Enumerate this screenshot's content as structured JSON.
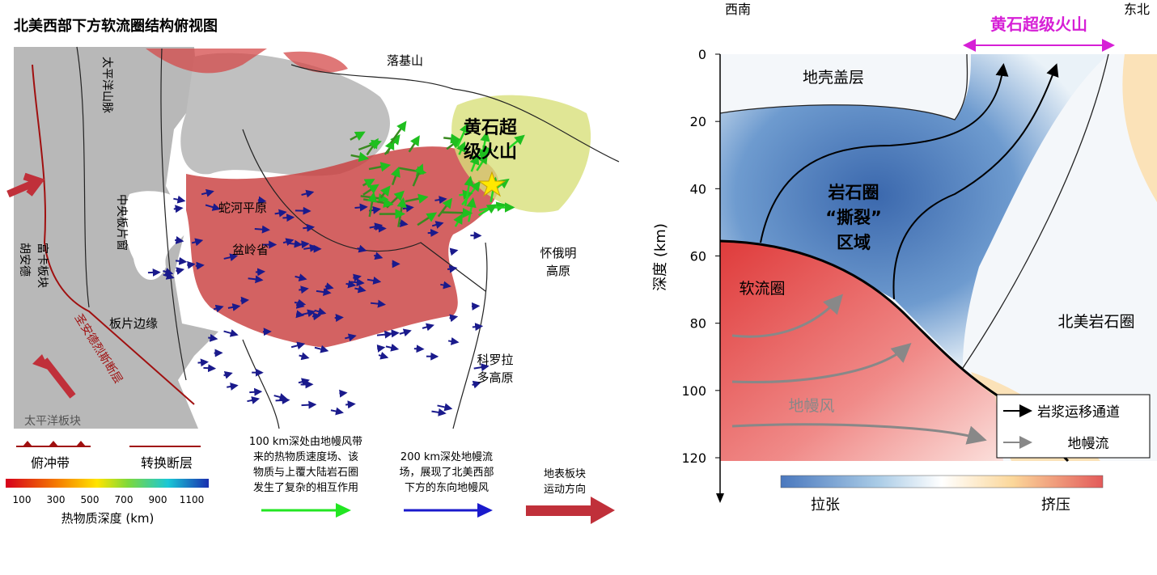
{
  "left_panel": {
    "title": "北美西部下方软流圈结构俯视图",
    "labels": {
      "rocky": "落基山",
      "cascades": "太平洋山脉",
      "yellowstone": [
        "黄石超",
        "级火山"
      ],
      "slab_window": "中央板片窗",
      "snake_river": "蛇河平原",
      "basin_range": "盆岭省",
      "juan_de_fuca": [
        "胡安德",
        "富卡板块"
      ],
      "slab_edge": "板片边缘",
      "san_andreas": "圣安德烈斯断层",
      "pacific_plate": "太平洋板块",
      "wyoming": [
        "怀俄明",
        "高原"
      ],
      "colorado": [
        "科罗拉",
        "多高原"
      ]
    },
    "legend": {
      "subduction": "俯冲带",
      "transform": "转换断层",
      "colorbar_ticks": [
        100,
        300,
        500,
        700,
        900,
        1100
      ],
      "colorbar_label": "热物质深度 (km)",
      "green_text": [
        "100 km深处由地幔风带",
        "来的热物质速度场、该",
        "物质与上覆大陆岩石圈",
        "发生了复杂的相互作用"
      ],
      "blue_text": [
        "200 km深处地幔流",
        "场，展现了北美西部",
        "下方的东向地幔风"
      ],
      "red_text": [
        "地表板块",
        "运动方向"
      ]
    }
  },
  "right_panel": {
    "southwest": "西南",
    "northeast": "东北",
    "yellowstone": "黄石超级火山",
    "y_label": "深度 (km)",
    "ylim": [
      0,
      120
    ],
    "yticks": [
      0,
      20,
      40,
      60,
      80,
      100,
      120
    ],
    "labels": {
      "crust": "地壳盖层",
      "tear": [
        "岩石圈",
        "“撕裂”",
        "区域"
      ],
      "asthenosphere": "软流圈",
      "na_lithosphere": "北美岩石圈",
      "mantle_wind": "地幔风"
    },
    "legend": {
      "magma": "岩浆运移通道",
      "flow": "地幔流"
    },
    "colorbar": {
      "left": "拉张",
      "right": "挤压"
    }
  }
}
